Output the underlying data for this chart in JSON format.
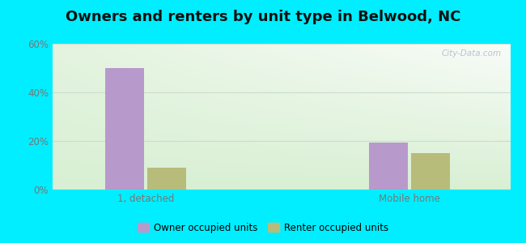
{
  "title": "Owners and renters by unit type in Belwood, NC",
  "categories": [
    "1, detached",
    "Mobile home"
  ],
  "series": [
    {
      "name": "Owner occupied units",
      "values": [
        50,
        19.5
      ],
      "color": "#b899cc"
    },
    {
      "name": "Renter occupied units",
      "values": [
        9,
        15
      ],
      "color": "#b8bc7a"
    }
  ],
  "ylim": [
    0,
    60
  ],
  "yticks": [
    0,
    20,
    40,
    60
  ],
  "yticklabels": [
    "0%",
    "20%",
    "40%",
    "60%"
  ],
  "bar_width": 0.25,
  "outer_background": "#00eeff",
  "grid_color": "#ccddcc",
  "title_fontsize": 13,
  "watermark": "City-Data.com",
  "tick_color": "#777777"
}
